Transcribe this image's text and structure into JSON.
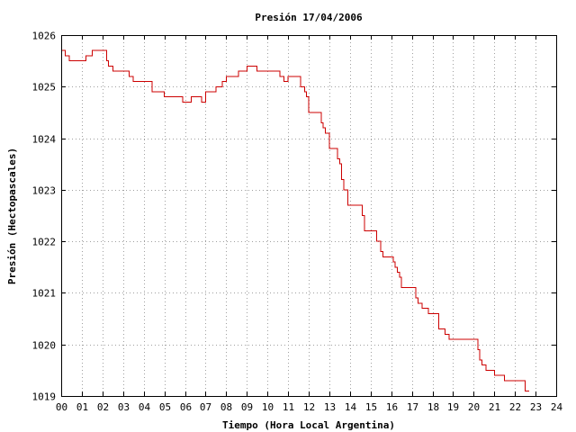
{
  "chart_data": {
    "type": "line",
    "title": "Presión 17/04/2006",
    "xlabel": "Tiempo (Hora Local Argentina)",
    "ylabel": "Presión (Hectopascales)",
    "xlim": [
      0,
      24
    ],
    "ylim": [
      1019,
      1026
    ],
    "grid": true,
    "x_ticks": [
      "00",
      "01",
      "02",
      "03",
      "04",
      "05",
      "06",
      "07",
      "08",
      "09",
      "10",
      "11",
      "12",
      "13",
      "14",
      "15",
      "16",
      "17",
      "18",
      "19",
      "20",
      "21",
      "22",
      "23",
      "24"
    ],
    "y_ticks": [
      "1019",
      "1020",
      "1021",
      "1022",
      "1023",
      "1024",
      "1025",
      "1026"
    ],
    "series": [
      {
        "color": "#cc0000",
        "step": true,
        "x": [
          0.0,
          0.2,
          0.4,
          0.5,
          1.0,
          1.2,
          1.5,
          2.1,
          2.2,
          2.3,
          2.5,
          3.0,
          3.3,
          3.5,
          4.0,
          4.4,
          4.5,
          5.0,
          5.5,
          5.9,
          6.3,
          6.4,
          6.8,
          7.0,
          7.3,
          7.5,
          7.8,
          8.0,
          8.5,
          8.6,
          9.0,
          9.2,
          9.5,
          10.3,
          10.6,
          10.8,
          11.0,
          11.4,
          11.6,
          11.8,
          11.9,
          12.0,
          12.5,
          12.6,
          12.7,
          12.8,
          13.0,
          13.3,
          13.4,
          13.5,
          13.6,
          13.7,
          13.9,
          14.5,
          14.6,
          14.7,
          15.2,
          15.3,
          15.5,
          15.6,
          15.8,
          16.1,
          16.2,
          16.3,
          16.4,
          16.5,
          16.6,
          17.0,
          17.2,
          17.3,
          17.5,
          17.6,
          17.8,
          18.2,
          18.3,
          18.6,
          18.8,
          19.0,
          20.0,
          20.1,
          20.2,
          20.3,
          20.4,
          20.5,
          20.6,
          20.8,
          20.9,
          21.0,
          21.5,
          21.8,
          22.5,
          22.7
        ],
        "values": [
          1025.7,
          1025.6,
          1025.5,
          1025.5,
          1025.5,
          1025.6,
          1025.7,
          1025.7,
          1025.5,
          1025.4,
          1025.3,
          1025.3,
          1025.2,
          1025.1,
          1025.1,
          1024.9,
          1024.9,
          1024.8,
          1024.8,
          1024.7,
          1024.8,
          1024.8,
          1024.7,
          1024.9,
          1024.9,
          1025.0,
          1025.1,
          1025.2,
          1025.2,
          1025.3,
          1025.4,
          1025.4,
          1025.3,
          1025.3,
          1025.2,
          1025.1,
          1025.2,
          1025.2,
          1025.0,
          1024.9,
          1024.8,
          1024.5,
          1024.5,
          1024.3,
          1024.2,
          1024.1,
          1023.8,
          1023.8,
          1023.6,
          1023.5,
          1023.2,
          1023.0,
          1022.7,
          1022.7,
          1022.5,
          1022.2,
          1022.2,
          1022.0,
          1021.8,
          1021.7,
          1021.7,
          1021.6,
          1021.5,
          1021.4,
          1021.3,
          1021.1,
          1021.1,
          1021.1,
          1020.9,
          1020.8,
          1020.7,
          1020.7,
          1020.6,
          1020.6,
          1020.3,
          1020.2,
          1020.1,
          1020.1,
          1020.1,
          1020.1,
          1019.9,
          1019.7,
          1019.6,
          1019.6,
          1019.5,
          1019.5,
          1019.5,
          1019.4,
          1019.3,
          1019.3,
          1019.1,
          1019.1
        ]
      }
    ]
  }
}
